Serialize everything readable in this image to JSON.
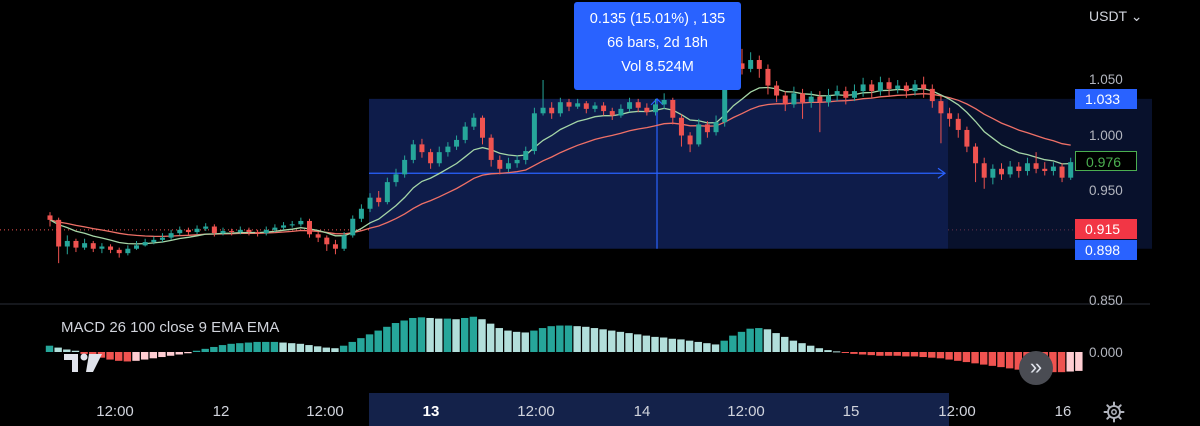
{
  "header": {
    "currency": "USDT",
    "currency_caret": "⌄"
  },
  "tooltip": {
    "line1": "0.135 (15.01%) , 135",
    "line2": "66 bars, 2d 18h",
    "line3": "Vol 8.524M"
  },
  "price_axis": {
    "ticks": [
      "1.050",
      "1.000",
      "0.950",
      "0.850"
    ]
  },
  "tags": {
    "top": "1.033",
    "current": "0.976",
    "last": "0.915",
    "bottom": "0.898"
  },
  "macd": {
    "title": "MACD 26 100 close 9 EMA EMA",
    "zero_label": "0.000"
  },
  "time_axis": {
    "labels": [
      "12:00",
      "12",
      "12:00",
      "13",
      "12:00",
      "14",
      "12:00",
      "15",
      "12:00",
      "16"
    ]
  },
  "controls": {
    "scroll_label": "»"
  },
  "colors": {
    "up": "#26a69a",
    "down": "#ef5350",
    "measure_fill": "#0e1c4a",
    "measure_line": "#2962ff",
    "ema_fast": "#a5d6a7",
    "ema_slow": "#ef7067",
    "hist_up_strong": "#26a69a",
    "hist_up_weak": "#b2dfdb",
    "hist_down_strong": "#ef5350",
    "hist_down_weak": "#ffcdd2"
  },
  "chart_data": {
    "type": "candlestick",
    "price_range": [
      0.85,
      1.065
    ],
    "measure": {
      "from": 0.898,
      "to": 1.033,
      "change": "0.135 (15.01%)",
      "bars": 66
    },
    "candles": [
      [
        0.928,
        0.924,
        0.931,
        0.918
      ],
      [
        0.924,
        0.9,
        0.926,
        0.885
      ],
      [
        0.9,
        0.905,
        0.91,
        0.893
      ],
      [
        0.905,
        0.899,
        0.907,
        0.895
      ],
      [
        0.899,
        0.903,
        0.907,
        0.897
      ],
      [
        0.903,
        0.898,
        0.905,
        0.895
      ],
      [
        0.898,
        0.9,
        0.903,
        0.894
      ],
      [
        0.9,
        0.897,
        0.902,
        0.894
      ],
      [
        0.897,
        0.894,
        0.899,
        0.89
      ],
      [
        0.894,
        0.898,
        0.901,
        0.892
      ],
      [
        0.898,
        0.901,
        0.905,
        0.897
      ],
      [
        0.901,
        0.904,
        0.907,
        0.9
      ],
      [
        0.904,
        0.906,
        0.909,
        0.902
      ],
      [
        0.906,
        0.908,
        0.912,
        0.904
      ],
      [
        0.908,
        0.912,
        0.915,
        0.906
      ],
      [
        0.912,
        0.915,
        0.918,
        0.91
      ],
      [
        0.915,
        0.913,
        0.917,
        0.91
      ],
      [
        0.913,
        0.916,
        0.919,
        0.911
      ],
      [
        0.916,
        0.918,
        0.921,
        0.914
      ],
      [
        0.918,
        0.912,
        0.92,
        0.909
      ],
      [
        0.912,
        0.914,
        0.917,
        0.91
      ],
      [
        0.914,
        0.913,
        0.916,
        0.91
      ],
      [
        0.913,
        0.915,
        0.918,
        0.911
      ],
      [
        0.915,
        0.913,
        0.917,
        0.91
      ],
      [
        0.913,
        0.912,
        0.915,
        0.909
      ],
      [
        0.912,
        0.915,
        0.918,
        0.91
      ],
      [
        0.915,
        0.917,
        0.92,
        0.913
      ],
      [
        0.917,
        0.919,
        0.922,
        0.915
      ],
      [
        0.919,
        0.92,
        0.923,
        0.917
      ],
      [
        0.92,
        0.923,
        0.926,
        0.918
      ],
      [
        0.923,
        0.911,
        0.925,
        0.908
      ],
      [
        0.911,
        0.908,
        0.913,
        0.904
      ],
      [
        0.908,
        0.902,
        0.91,
        0.896
      ],
      [
        0.902,
        0.898,
        0.906,
        0.893
      ],
      [
        0.898,
        0.91,
        0.913,
        0.896
      ],
      [
        0.91,
        0.925,
        0.928,
        0.908
      ],
      [
        0.925,
        0.934,
        0.938,
        0.922
      ],
      [
        0.934,
        0.944,
        0.948,
        0.931
      ],
      [
        0.944,
        0.94,
        0.95,
        0.936
      ],
      [
        0.94,
        0.958,
        0.962,
        0.938
      ],
      [
        0.958,
        0.965,
        0.97,
        0.954
      ],
      [
        0.965,
        0.978,
        0.982,
        0.962
      ],
      [
        0.978,
        0.992,
        0.996,
        0.975
      ],
      [
        0.992,
        0.985,
        0.997,
        0.98
      ],
      [
        0.985,
        0.975,
        0.988,
        0.97
      ],
      [
        0.975,
        0.985,
        0.99,
        0.972
      ],
      [
        0.985,
        0.99,
        0.994,
        0.981
      ],
      [
        0.99,
        0.996,
        1.0,
        0.987
      ],
      [
        0.996,
        1.008,
        1.012,
        0.993
      ],
      [
        1.008,
        1.016,
        1.02,
        1.005
      ],
      [
        1.016,
        0.998,
        1.018,
        0.992
      ],
      [
        0.998,
        0.978,
        1.001,
        0.972
      ],
      [
        0.978,
        0.97,
        0.982,
        0.965
      ],
      [
        0.97,
        0.975,
        0.98,
        0.967
      ],
      [
        0.975,
        0.978,
        0.982,
        0.971
      ],
      [
        0.978,
        0.986,
        0.99,
        0.974
      ],
      [
        0.986,
        1.02,
        1.025,
        0.983
      ],
      [
        1.02,
        1.025,
        1.05,
        1.018
      ],
      [
        1.025,
        1.02,
        1.03,
        1.015
      ],
      [
        1.02,
        1.03,
        1.034,
        1.017
      ],
      [
        1.03,
        1.026,
        1.033,
        1.022
      ],
      [
        1.026,
        1.029,
        1.033,
        1.024
      ],
      [
        1.029,
        1.024,
        1.031,
        1.02
      ],
      [
        1.024,
        1.027,
        1.03,
        1.021
      ],
      [
        1.027,
        1.022,
        1.03,
        1.018
      ],
      [
        1.022,
        1.018,
        1.025,
        1.014
      ],
      [
        1.018,
        1.024,
        1.028,
        1.016
      ],
      [
        1.024,
        1.03,
        1.034,
        1.021
      ],
      [
        1.03,
        1.025,
        1.033,
        1.021
      ],
      [
        1.025,
        1.021,
        1.029,
        1.018
      ],
      [
        1.021,
        1.028,
        1.033,
        1.018
      ],
      [
        1.028,
        1.032,
        1.038,
        1.024
      ],
      [
        1.032,
        1.016,
        1.034,
        1.01
      ],
      [
        1.016,
        1.0,
        1.019,
        0.99
      ],
      [
        1.0,
        0.992,
        1.003,
        0.985
      ],
      [
        0.992,
        1.01,
        1.015,
        0.99
      ],
      [
        1.01,
        1.003,
        1.013,
        0.998
      ],
      [
        1.003,
        1.012,
        1.018,
        1.0
      ],
      [
        1.012,
        1.05,
        1.055,
        1.008
      ],
      [
        1.05,
        1.065,
        1.072,
        1.046
      ],
      [
        1.065,
        1.06,
        1.078,
        1.055
      ],
      [
        1.06,
        1.068,
        1.075,
        1.057
      ],
      [
        1.068,
        1.06,
        1.072,
        1.052
      ],
      [
        1.06,
        1.045,
        1.064,
        1.037
      ],
      [
        1.045,
        1.036,
        1.049,
        1.03
      ],
      [
        1.036,
        1.028,
        1.04,
        1.022
      ],
      [
        1.028,
        1.038,
        1.044,
        1.025
      ],
      [
        1.038,
        1.03,
        1.042,
        1.015
      ],
      [
        1.03,
        1.035,
        1.04,
        1.025
      ],
      [
        1.035,
        1.03,
        1.04,
        1.003
      ],
      [
        1.03,
        1.036,
        1.042,
        1.026
      ],
      [
        1.036,
        1.04,
        1.045,
        1.031
      ],
      [
        1.04,
        1.034,
        1.044,
        1.028
      ],
      [
        1.034,
        1.04,
        1.046,
        1.031
      ],
      [
        1.04,
        1.046,
        1.052,
        1.035
      ],
      [
        1.046,
        1.04,
        1.05,
        1.034
      ],
      [
        1.04,
        1.048,
        1.053,
        1.036
      ],
      [
        1.048,
        1.042,
        1.052,
        1.036
      ],
      [
        1.042,
        1.045,
        1.05,
        1.038
      ],
      [
        1.045,
        1.04,
        1.048,
        1.034
      ],
      [
        1.04,
        1.046,
        1.05,
        1.036
      ],
      [
        1.046,
        1.042,
        1.053,
        1.034
      ],
      [
        1.042,
        1.031,
        1.046,
        1.025
      ],
      [
        1.031,
        1.02,
        1.036,
        0.993
      ],
      [
        1.02,
        1.015,
        1.025,
        1.008
      ],
      [
        1.015,
        1.005,
        1.02,
        0.998
      ],
      [
        1.005,
        0.99,
        1.008,
        0.985
      ],
      [
        0.99,
        0.975,
        0.993,
        0.958
      ],
      [
        0.975,
        0.962,
        0.98,
        0.952
      ],
      [
        0.962,
        0.97,
        0.974,
        0.956
      ],
      [
        0.97,
        0.965,
        0.975,
        0.96
      ],
      [
        0.965,
        0.972,
        0.977,
        0.962
      ],
      [
        0.972,
        0.968,
        0.976,
        0.962
      ],
      [
        0.968,
        0.975,
        0.98,
        0.964
      ],
      [
        0.975,
        0.97,
        0.985,
        0.966
      ],
      [
        0.97,
        0.968,
        0.976,
        0.964
      ],
      [
        0.968,
        0.972,
        0.976,
        0.964
      ],
      [
        0.972,
        0.962,
        0.975,
        0.958
      ],
      [
        0.962,
        0.976,
        0.98,
        0.96
      ]
    ],
    "macd_histogram": [
      0.001,
      0.0007,
      0.0004,
      0.0002,
      -0.0003,
      -0.0006,
      -0.0009,
      -0.0012,
      -0.0014,
      -0.0015,
      -0.0014,
      -0.0012,
      -0.001,
      -0.0008,
      -0.0006,
      -0.0004,
      -0.0002,
      0.0002,
      0.0005,
      0.0008,
      0.0011,
      0.0013,
      0.0014,
      0.0015,
      0.0016,
      0.0016,
      0.0016,
      0.0015,
      0.0014,
      0.0013,
      0.0011,
      0.0009,
      0.0007,
      0.0006,
      0.001,
      0.0016,
      0.0022,
      0.0028,
      0.0034,
      0.004,
      0.0046,
      0.005,
      0.0054,
      0.0055,
      0.0054,
      0.0053,
      0.0053,
      0.0052,
      0.0054,
      0.0056,
      0.0052,
      0.0045,
      0.0038,
      0.0034,
      0.0032,
      0.0031,
      0.0034,
      0.0038,
      0.0041,
      0.0042,
      0.0042,
      0.0041,
      0.004,
      0.0038,
      0.0036,
      0.0034,
      0.0032,
      0.003,
      0.0028,
      0.0026,
      0.0024,
      0.0023,
      0.0021,
      0.002,
      0.0018,
      0.0016,
      0.0014,
      0.0012,
      0.0018,
      0.0026,
      0.0032,
      0.0037,
      0.0038,
      0.0036,
      0.003,
      0.0024,
      0.0018,
      0.0014,
      0.001,
      0.0006,
      0.0003,
      0.0001,
      -0.0001,
      -0.0003,
      -0.0004,
      -0.0005,
      -0.0006,
      -0.0006,
      -0.0006,
      -0.0007,
      -0.0007,
      -0.0008,
      -0.0009,
      -0.001,
      -0.0012,
      -0.0014,
      -0.0016,
      -0.0018,
      -0.002,
      -0.0022,
      -0.0024,
      -0.0026,
      -0.0028,
      -0.003,
      -0.0031,
      -0.0032,
      -0.0032,
      -0.0032,
      -0.0031,
      -0.003
    ]
  }
}
